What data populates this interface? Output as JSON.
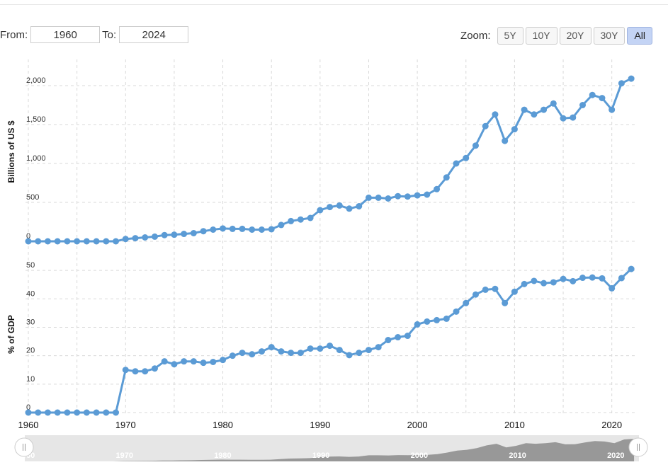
{
  "range_selector": {
    "from_label": "From:",
    "from_value": "1960",
    "to_label": "To:",
    "to_value": "2024"
  },
  "zoom": {
    "label": "Zoom:",
    "buttons": [
      "5Y",
      "10Y",
      "20Y",
      "30Y",
      "All"
    ],
    "active": "All"
  },
  "colors": {
    "series": "#5b9bd5",
    "grid": "#d9d9d9",
    "navigator_fill": "#8a8a8a",
    "navigator_bg": "#e6e6e6"
  },
  "chart_data": {
    "type": "line",
    "x": [
      1960,
      1961,
      1962,
      1963,
      1964,
      1965,
      1966,
      1967,
      1968,
      1969,
      1970,
      1971,
      1972,
      1973,
      1974,
      1975,
      1976,
      1977,
      1978,
      1979,
      1980,
      1981,
      1982,
      1983,
      1984,
      1985,
      1986,
      1987,
      1988,
      1989,
      1990,
      1991,
      1992,
      1993,
      1994,
      1995,
      1996,
      1997,
      1998,
      1999,
      2000,
      2001,
      2002,
      2003,
      2004,
      2005,
      2006,
      2007,
      2008,
      2009,
      2010,
      2011,
      2012,
      2013,
      2014,
      2015,
      2016,
      2017,
      2018,
      2019,
      2020,
      2021,
      2022
    ],
    "x_ticks": [
      1960,
      1970,
      1980,
      1990,
      2000,
      2010,
      2020
    ],
    "grid": true,
    "panels": [
      {
        "ylabel": "Billions of US $",
        "ylim": [
          0,
          2300
        ],
        "y_ticks": [
          0,
          500,
          1000,
          1500,
          2000
        ],
        "y_tick_labels": [
          "0",
          "500",
          "1,000",
          "1,500",
          "2,000"
        ],
        "values": [
          0,
          0,
          0,
          0,
          0,
          0,
          0,
          0,
          0,
          0,
          30,
          40,
          50,
          60,
          80,
          85,
          95,
          105,
          130,
          150,
          165,
          160,
          160,
          150,
          150,
          155,
          210,
          260,
          280,
          300,
          400,
          440,
          460,
          420,
          450,
          560,
          560,
          550,
          580,
          575,
          590,
          600,
          670,
          820,
          1000,
          1070,
          1230,
          1480,
          1630,
          1290,
          1440,
          1690,
          1630,
          1690,
          1770,
          1580,
          1590,
          1750,
          1880,
          1840,
          1690,
          2030,
          2090
        ]
      },
      {
        "ylabel": "% of GDP",
        "ylim": [
          0,
          55
        ],
        "y_ticks": [
          0,
          10,
          20,
          30,
          40,
          50
        ],
        "y_tick_labels": [
          "0",
          "10",
          "20",
          "30",
          "40",
          "50"
        ],
        "values": [
          0,
          0,
          0,
          0,
          0,
          0,
          0,
          0,
          0,
          0,
          15,
          14.5,
          14.5,
          15.5,
          18,
          17,
          18,
          18,
          17.5,
          17.8,
          18.5,
          20,
          21,
          20.5,
          21.5,
          23,
          21.5,
          21,
          21,
          22.5,
          22.5,
          23.5,
          22,
          20.2,
          21,
          22,
          23,
          25.5,
          26.5,
          27,
          31,
          32,
          32.5,
          33,
          35.5,
          38.5,
          41.5,
          43.2,
          43.5,
          38.5,
          42.5,
          45.2,
          46.3,
          45.5,
          45.8,
          47,
          46.2,
          47.4,
          47.5,
          47.2,
          43.7,
          47.3,
          50.5
        ]
      }
    ],
    "navigator": {
      "x_tick_labels": [
        "1960",
        "1970",
        "1980",
        "1990",
        "2000",
        "2010",
        "2020"
      ]
    }
  }
}
